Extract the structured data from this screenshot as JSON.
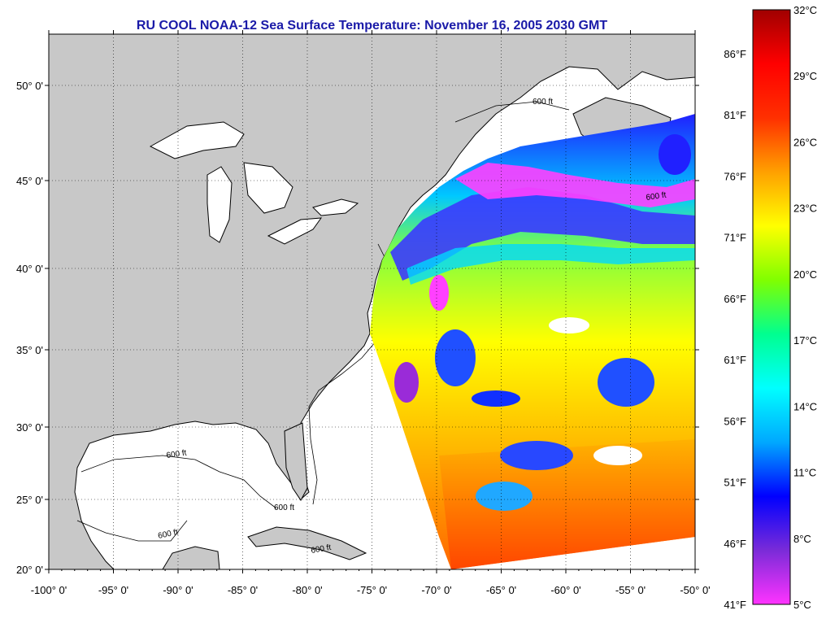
{
  "title": "RU COOL  NOAA-12  Sea Surface Temperature:  November 16, 2005 2030 GMT",
  "map": {
    "lat_labels": [
      "50° 0'",
      "45° 0'",
      "40° 0'",
      "35° 0'",
      "30° 0'",
      "25° 0'",
      "20° 0'"
    ],
    "lon_labels": [
      "-100° 0'",
      "-95° 0'",
      "-90° 0'",
      "-85° 0'",
      "-80° 0'",
      "-75° 0'",
      "-70° 0'",
      "-65° 0'",
      "-60° 0'",
      "-55° 0'",
      "-50° 0'"
    ],
    "isobath_labels": [
      "600 ft",
      "600 ft",
      "600 ft",
      "600 ft",
      "600 ft",
      "600 ft"
    ],
    "colors": {
      "land": "#c8c8c8",
      "water_no_data": "#ffffff",
      "grid": "#000000",
      "title": "#1a1aa8"
    }
  },
  "colorbar": {
    "celsius_labels": [
      "32°C",
      "29°C",
      "26°C",
      "23°C",
      "20°C",
      "17°C",
      "14°C",
      "11°C",
      "8°C",
      "5°C"
    ],
    "fahrenheit_labels": [
      "86°F",
      "81°F",
      "76°F",
      "71°F",
      "66°F",
      "61°F",
      "56°F",
      "51°F",
      "46°F",
      "41°F"
    ],
    "range_celsius": [
      5,
      32
    ],
    "stops": [
      "#ff33ff",
      "#7a2bd8",
      "#0000ff",
      "#00a8ff",
      "#00ffff",
      "#00ff90",
      "#80ff00",
      "#ffff00",
      "#ffa000",
      "#ff3000",
      "#ff0000",
      "#a00000"
    ]
  }
}
